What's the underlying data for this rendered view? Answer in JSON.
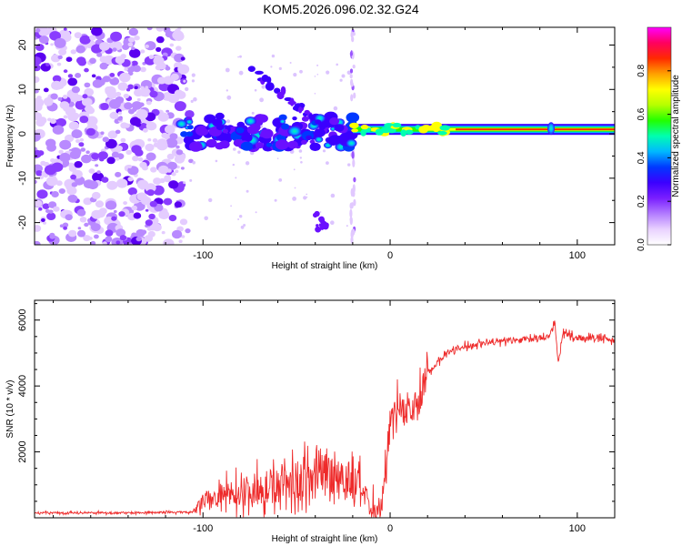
{
  "title": "KOM5.2026.096.02.32.G24",
  "chart_data": [
    {
      "type": "heatmap",
      "xlabel": "Height of straight line (km)",
      "ylabel": "Frequency (Hz)",
      "xlim": [
        -190,
        120
      ],
      "ylim": [
        -25,
        24
      ],
      "x_ticks": [
        -100,
        0,
        100
      ],
      "y_ticks": [
        -20,
        -10,
        0,
        10,
        20
      ],
      "colorbar": {
        "label": "Normalized spectral amplitude",
        "range": [
          0,
          1
        ],
        "ticks": [
          "0.0",
          "0.2",
          "0.4",
          "0.6",
          "0.8"
        ],
        "colors": [
          "#ffffff",
          "#e9d2ff",
          "#b27bff",
          "#7a1fff",
          "#3b00ff",
          "#0038ff",
          "#00b9ff",
          "#00ffb0",
          "#22ff00",
          "#b6ff00",
          "#ffff00",
          "#ffa000",
          "#ff2a00",
          "#ff0060",
          "#ff00ff"
        ]
      },
      "features": {
        "noise_region_x": [
          -190,
          -110
        ],
        "carrier_freq_hz": 1,
        "carrier_start_km": -20,
        "vertical_streak_km": -20
      }
    },
    {
      "type": "line",
      "xlabel": "Height of straight line (km)",
      "ylabel": "SNR (10 * v/v)",
      "xlim": [
        -190,
        120
      ],
      "ylim": [
        0,
        6600
      ],
      "x_ticks": [
        -100,
        0,
        100
      ],
      "y_ticks": [
        2000,
        4000,
        6000
      ],
      "color": "#ee2a2a",
      "profile": {
        "x": [
          -190,
          -150,
          -105,
          -100,
          -80,
          -60,
          -40,
          -30,
          -15,
          -10,
          -5,
          -2,
          0,
          5,
          10,
          15,
          20,
          25,
          30,
          40,
          50,
          60,
          70,
          80,
          85,
          88,
          90,
          92,
          100,
          110,
          120
        ],
        "y": [
          150,
          150,
          170,
          500,
          800,
          1000,
          1200,
          1400,
          900,
          120,
          150,
          1500,
          3200,
          3400,
          3200,
          3500,
          4400,
          4700,
          5000,
          5200,
          5300,
          5350,
          5400,
          5450,
          5500,
          6000,
          4600,
          5600,
          5450,
          5450,
          5400
        ]
      }
    }
  ]
}
